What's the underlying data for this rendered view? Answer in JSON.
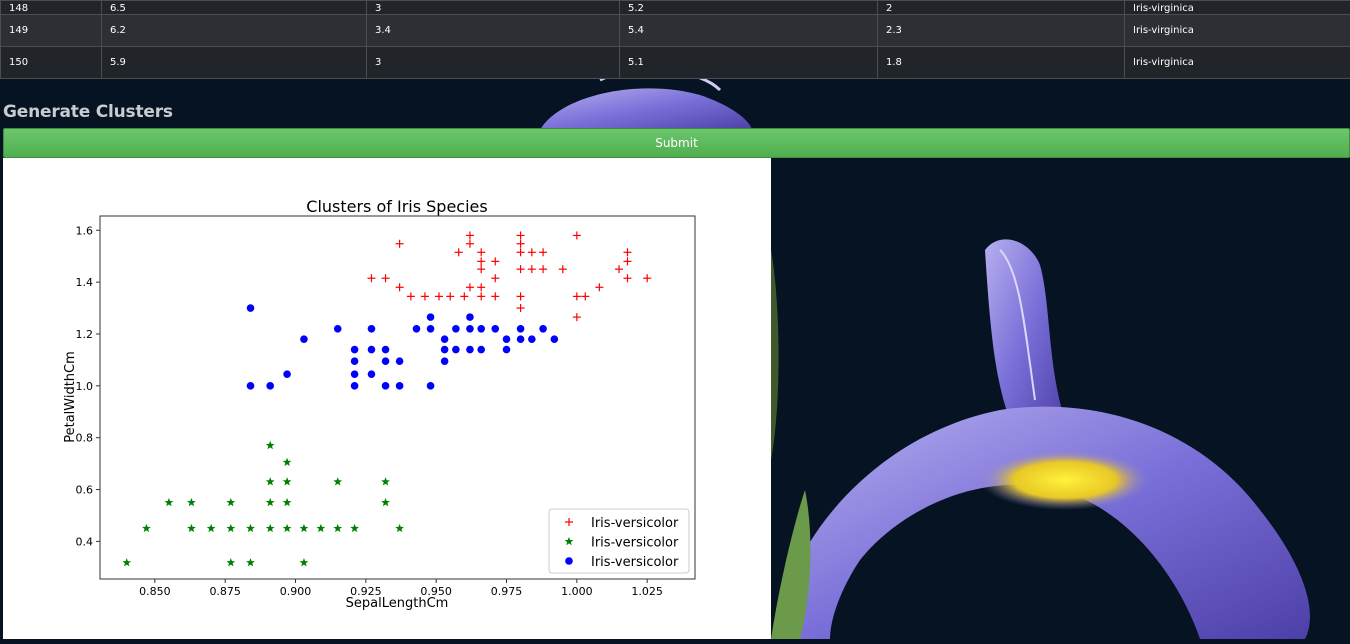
{
  "table": {
    "rows": [
      [
        "148",
        "6.5",
        "3",
        "5.2",
        "2",
        "Iris-virginica"
      ],
      [
        "149",
        "6.2",
        "3.4",
        "5.4",
        "2.3",
        "Iris-virginica"
      ],
      [
        "150",
        "5.9",
        "3",
        "5.1",
        "1.8",
        "Iris-virginica"
      ]
    ]
  },
  "cluster_section": {
    "title": "Generate Clusters",
    "submit_label": "Submit"
  },
  "chart_data": {
    "type": "scatter",
    "title": "Clusters of Iris Species",
    "xlabel": "SepalLengthCm",
    "ylabel": "PetalWidthCm",
    "xlim": [
      0.8305,
      1.042
    ],
    "ylim": [
      0.255,
      1.655
    ],
    "xticks": [
      "0.850",
      "0.875",
      "0.900",
      "0.925",
      "0.950",
      "0.975",
      "1.000",
      "1.025"
    ],
    "yticks": [
      "0.4",
      "0.6",
      "0.8",
      "1.0",
      "1.2",
      "1.4",
      "1.6"
    ],
    "grid": false,
    "legend_position": "lower-right",
    "series": [
      {
        "name": "Iris-versicolor",
        "marker": "plus",
        "color": "#ff0000",
        "points": [
          [
            0.927,
            1.415
          ],
          [
            0.932,
            1.415
          ],
          [
            0.937,
            1.548
          ],
          [
            0.937,
            1.38
          ],
          [
            0.941,
            1.345
          ],
          [
            0.946,
            1.345
          ],
          [
            0.951,
            1.345
          ],
          [
            0.955,
            1.345
          ],
          [
            0.958,
            1.515
          ],
          [
            0.96,
            1.345
          ],
          [
            0.962,
            1.548
          ],
          [
            0.962,
            1.58
          ],
          [
            0.962,
            1.38
          ],
          [
            0.966,
            1.515
          ],
          [
            0.966,
            1.48
          ],
          [
            0.966,
            1.45
          ],
          [
            0.966,
            1.38
          ],
          [
            0.966,
            1.345
          ],
          [
            0.971,
            1.48
          ],
          [
            0.971,
            1.415
          ],
          [
            0.971,
            1.345
          ],
          [
            0.98,
            1.58
          ],
          [
            0.98,
            1.548
          ],
          [
            0.98,
            1.515
          ],
          [
            0.98,
            1.45
          ],
          [
            0.98,
            1.345
          ],
          [
            0.98,
            1.3
          ],
          [
            0.984,
            1.515
          ],
          [
            0.984,
            1.45
          ],
          [
            0.988,
            1.515
          ],
          [
            0.988,
            1.45
          ],
          [
            0.995,
            1.45
          ],
          [
            1.0,
            1.58
          ],
          [
            1.0,
            1.345
          ],
          [
            1.0,
            1.265
          ],
          [
            1.003,
            1.345
          ],
          [
            1.008,
            1.38
          ],
          [
            1.015,
            1.45
          ],
          [
            1.018,
            1.515
          ],
          [
            1.018,
            1.48
          ],
          [
            1.018,
            1.415
          ],
          [
            1.025,
            1.415
          ]
        ]
      },
      {
        "name": "Iris-versicolor",
        "marker": "star",
        "color": "#008000",
        "points": [
          [
            0.84,
            0.318
          ],
          [
            0.847,
            0.45
          ],
          [
            0.855,
            0.55
          ],
          [
            0.863,
            0.55
          ],
          [
            0.863,
            0.45
          ],
          [
            0.87,
            0.45
          ],
          [
            0.877,
            0.55
          ],
          [
            0.877,
            0.45
          ],
          [
            0.877,
            0.318
          ],
          [
            0.884,
            0.45
          ],
          [
            0.884,
            0.318
          ],
          [
            0.891,
            0.77
          ],
          [
            0.891,
            0.63
          ],
          [
            0.891,
            0.55
          ],
          [
            0.891,
            0.45
          ],
          [
            0.897,
            0.705
          ],
          [
            0.897,
            0.63
          ],
          [
            0.897,
            0.55
          ],
          [
            0.897,
            0.45
          ],
          [
            0.903,
            0.45
          ],
          [
            0.903,
            0.318
          ],
          [
            0.909,
            0.45
          ],
          [
            0.915,
            0.63
          ],
          [
            0.915,
            0.45
          ],
          [
            0.921,
            0.45
          ],
          [
            0.932,
            0.63
          ],
          [
            0.932,
            0.55
          ],
          [
            0.937,
            0.45
          ]
        ]
      },
      {
        "name": "Iris-versicolor",
        "marker": "circle",
        "color": "#0000ff",
        "points": [
          [
            0.884,
            1.3
          ],
          [
            0.884,
            1.0
          ],
          [
            0.891,
            1.0
          ],
          [
            0.897,
            1.045
          ],
          [
            0.903,
            1.18
          ],
          [
            0.915,
            1.22
          ],
          [
            0.921,
            1.14
          ],
          [
            0.921,
            1.095
          ],
          [
            0.921,
            1.045
          ],
          [
            0.921,
            1.0
          ],
          [
            0.927,
            1.22
          ],
          [
            0.927,
            1.14
          ],
          [
            0.927,
            1.045
          ],
          [
            0.932,
            1.14
          ],
          [
            0.932,
            1.095
          ],
          [
            0.932,
            1.0
          ],
          [
            0.937,
            1.095
          ],
          [
            0.937,
            1.0
          ],
          [
            0.943,
            1.22
          ],
          [
            0.948,
            1.265
          ],
          [
            0.948,
            1.22
          ],
          [
            0.948,
            1.0
          ],
          [
            0.953,
            1.18
          ],
          [
            0.953,
            1.14
          ],
          [
            0.953,
            1.095
          ],
          [
            0.957,
            1.22
          ],
          [
            0.957,
            1.14
          ],
          [
            0.962,
            1.265
          ],
          [
            0.962,
            1.22
          ],
          [
            0.962,
            1.14
          ],
          [
            0.966,
            1.22
          ],
          [
            0.966,
            1.14
          ],
          [
            0.971,
            1.22
          ],
          [
            0.975,
            1.18
          ],
          [
            0.975,
            1.14
          ],
          [
            0.98,
            1.22
          ],
          [
            0.98,
            1.18
          ],
          [
            0.984,
            1.18
          ],
          [
            0.988,
            1.22
          ],
          [
            0.992,
            1.18
          ]
        ]
      }
    ]
  }
}
